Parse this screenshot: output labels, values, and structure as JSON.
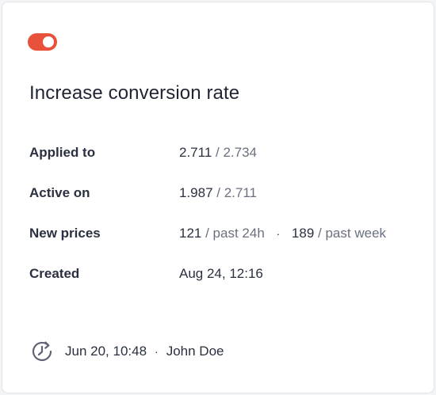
{
  "rule": {
    "enabled": true,
    "toggle_color": "#e8523a",
    "title": "Increase conversion rate"
  },
  "details": {
    "applied_to": {
      "label": "Applied to",
      "value": "2.711",
      "total": "/ 2.734"
    },
    "active_on": {
      "label": "Active on",
      "value": "1.987",
      "total": "/ 2.711"
    },
    "new_prices": {
      "label": "New prices",
      "day_value": "121",
      "day_suffix": "/ past 24h",
      "separator": "·",
      "week_value": "189",
      "week_suffix": "/ past week"
    },
    "created": {
      "label": "Created",
      "value": "Aug 24, 12:16"
    }
  },
  "footer": {
    "icon": "history-icon",
    "timestamp": "Jun 20, 10:48",
    "separator": "·",
    "author": "John Doe"
  }
}
